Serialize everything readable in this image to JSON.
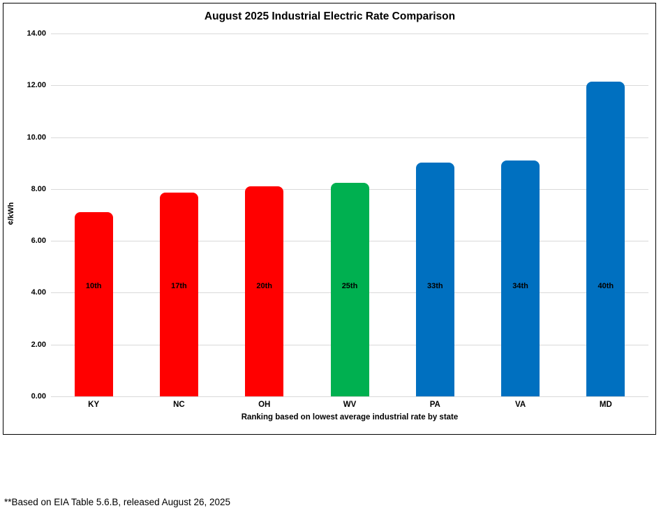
{
  "title": "August 2025 Industrial Electric Rate Comparison",
  "footnote": "**Based on EIA Table 5.6.B, released August 26, 2025",
  "chart_data": {
    "type": "bar",
    "title": "August 2025 Industrial Electric Rate Comparison",
    "categories": [
      "KY",
      "NC",
      "OH",
      "WV",
      "PA",
      "VA",
      "MD"
    ],
    "values": [
      7.1,
      7.86,
      8.1,
      8.25,
      9.01,
      9.11,
      12.15
    ],
    "bar_labels": [
      "10th",
      "17th",
      "20th",
      "25th",
      "33th",
      "34th",
      "40th"
    ],
    "bar_colors": [
      "#ff0000",
      "#ff0000",
      "#ff0000",
      "#00b050",
      "#0070c0",
      "#0070c0",
      "#0070c0"
    ],
    "xlabel": "Ranking based on lowest average industrial rate by state",
    "ylabel": "¢/kWh",
    "ylim": [
      0,
      14
    ],
    "ytick_step": 2,
    "ytick_labels": [
      "0.00",
      "2.00",
      "4.00",
      "6.00",
      "8.00",
      "10.00",
      "12.00",
      "14.00"
    ],
    "grid": true,
    "legend": false,
    "gridline_color": "#d9d9d9"
  }
}
